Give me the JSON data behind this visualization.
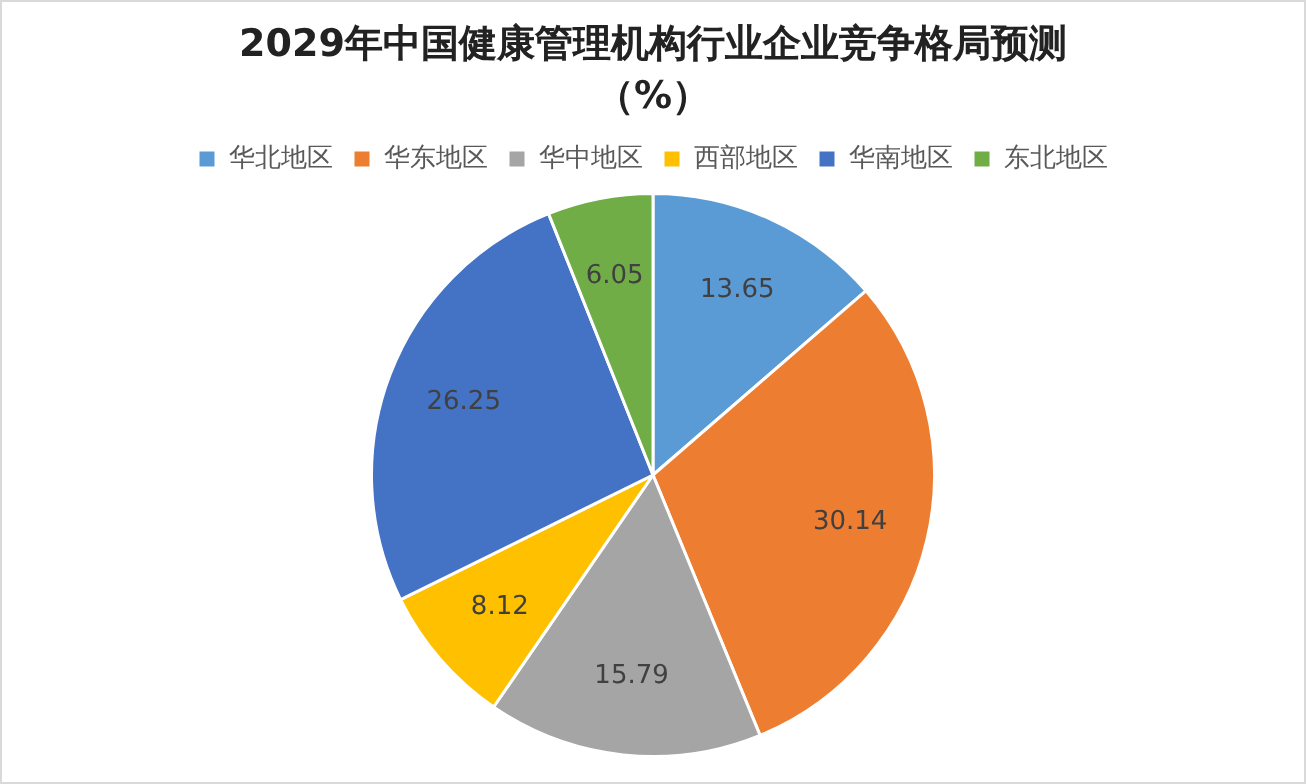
{
  "chart_data": {
    "type": "pie",
    "title": "2029年中国健康管理机构行业企业竞争格局预测（%）",
    "categories": [
      "华北地区",
      "华东地区",
      "华中地区",
      "西部地区",
      "华南地区",
      "东北地区"
    ],
    "values": [
      13.65,
      30.14,
      15.79,
      8.12,
      26.25,
      6.05
    ],
    "colors": [
      "#5b9bd5",
      "#ed7d31",
      "#a5a5a5",
      "#ffc000",
      "#4472c4",
      "#70ad47"
    ],
    "legend": "top",
    "data_labels": true
  }
}
